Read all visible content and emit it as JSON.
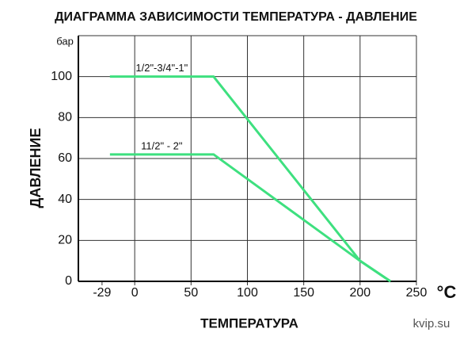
{
  "chart_data": {
    "type": "line",
    "title": "ДИАГРАММА ЗАВИСИМОСТИ ТЕМПЕРАТУРА - ДАВЛЕНИЕ",
    "y_label": "ДАВЛЕНИЕ",
    "y_unit": "бар",
    "x_label": "ТЕМПЕРАТУРА",
    "x_unit": "°C",
    "watermark": "kvip.su",
    "xlim": [
      -50,
      250
    ],
    "xticks": [
      -29,
      0,
      50,
      100,
      150,
      200,
      250
    ],
    "ylim": [
      0,
      120
    ],
    "yticks": [
      0,
      20,
      40,
      60,
      80,
      100
    ],
    "grid": true,
    "series": [
      {
        "name": "1/2\"-3/4\"-1\"",
        "color": "#3ee07f",
        "x": [
          -22,
          70,
          200,
          227
        ],
        "values": [
          100,
          100,
          10,
          0
        ]
      },
      {
        "name": "11/2\" - 2\"",
        "color": "#3ee07f",
        "x": [
          -22,
          70,
          200,
          227
        ],
        "values": [
          62,
          62,
          10,
          0
        ]
      }
    ]
  }
}
